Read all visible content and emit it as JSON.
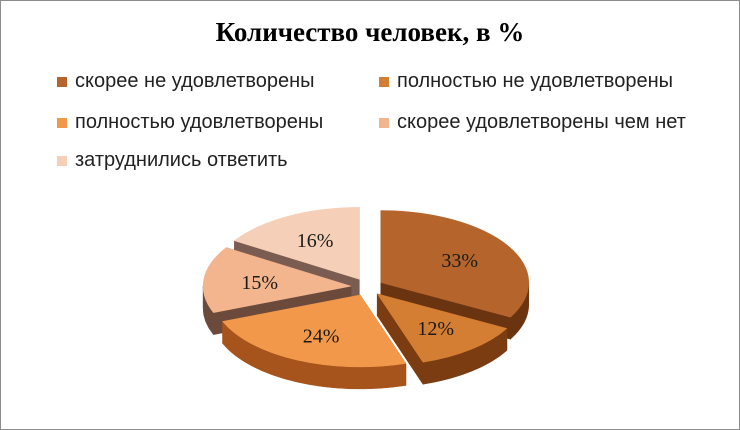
{
  "chart_data": {
    "type": "pie",
    "title": "Количество человек, в %",
    "legend_position": "top",
    "categories": [
      "скорее не удовлетворены",
      "полностью не удовлетворены",
      "полностью удовлетворены",
      "скорее удовлетворены чем нет",
      "затруднились ответить"
    ],
    "values": [
      33,
      12,
      24,
      15,
      16
    ],
    "labels": [
      "33%",
      "12%",
      "24%",
      "15%",
      "16%"
    ],
    "colors": [
      "#b5652c",
      "#d47e34",
      "#f2984a",
      "#f3b58d",
      "#f6cfb8"
    ],
    "side_colors": [
      "#6a3410",
      "#7b3c12",
      "#a6531c",
      "#6b4a3c",
      "#7b5c50"
    ]
  }
}
